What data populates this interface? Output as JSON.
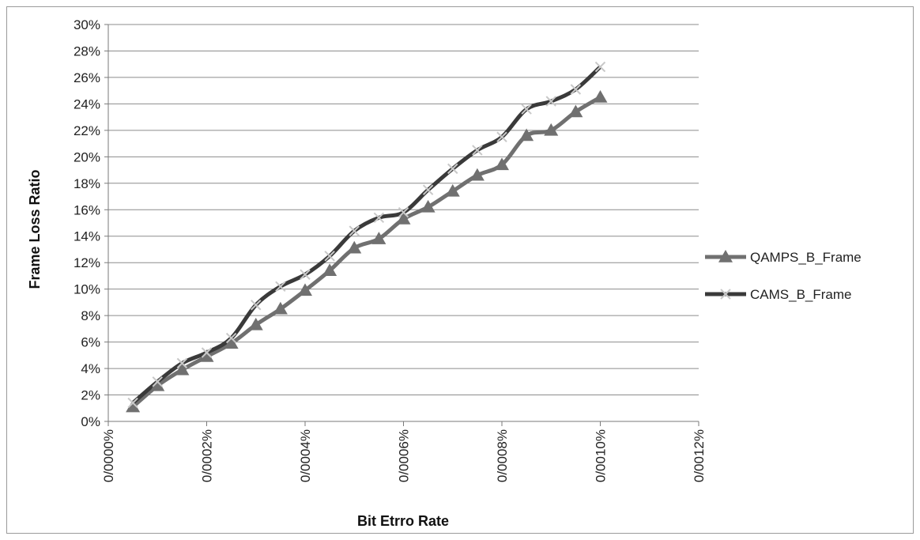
{
  "chart_data": {
    "type": "line",
    "title": "",
    "xlabel": "Bit Etrro Rate",
    "ylabel": "Frame Loss Ratio",
    "x_tick_labels": [
      "0/0000%",
      "0/0002%",
      "0/0004%",
      "0/0006%",
      "0/0008%",
      "0/0010%",
      "0/0012%"
    ],
    "x_ticks": [
      0,
      0.0002,
      0.0004,
      0.0006,
      0.0008,
      0.001,
      0.0012
    ],
    "y_tick_labels": [
      "0%",
      "2%",
      "4%",
      "6%",
      "8%",
      "10%",
      "12%",
      "14%",
      "16%",
      "18%",
      "20%",
      "22%",
      "24%",
      "26%",
      "28%",
      "30%"
    ],
    "y_ticks": [
      0,
      2,
      4,
      6,
      8,
      10,
      12,
      14,
      16,
      18,
      20,
      22,
      24,
      26,
      28,
      30
    ],
    "xlim": [
      0,
      0.0012
    ],
    "ylim": [
      0,
      30
    ],
    "grid": true,
    "legend_position": "right",
    "x": [
      5e-05,
      0.0001,
      0.00015,
      0.0002,
      0.00025,
      0.0003,
      0.00035,
      0.0004,
      0.00045,
      0.0005,
      0.00055,
      0.0006,
      0.00065,
      0.0007,
      0.00075,
      0.0008,
      0.00085,
      0.0009,
      0.00095,
      0.001
    ],
    "series": [
      {
        "name": "QAMPS_B_Frame",
        "marker": "triangle",
        "color": "#707070",
        "values": [
          1.1,
          2.7,
          3.9,
          4.9,
          5.9,
          7.3,
          8.5,
          9.9,
          11.4,
          13.1,
          13.8,
          15.3,
          16.2,
          17.4,
          18.6,
          19.4,
          21.6,
          22.0,
          23.4,
          24.5
        ]
      },
      {
        "name": "CAMS_B_Frame",
        "marker": "x",
        "color": "#3a3a3a",
        "values": [
          1.4,
          3.0,
          4.4,
          5.2,
          6.3,
          8.8,
          10.2,
          11.1,
          12.5,
          14.4,
          15.4,
          15.8,
          17.5,
          19.1,
          20.5,
          21.5,
          23.6,
          24.2,
          25.1,
          26.8
        ]
      }
    ]
  }
}
